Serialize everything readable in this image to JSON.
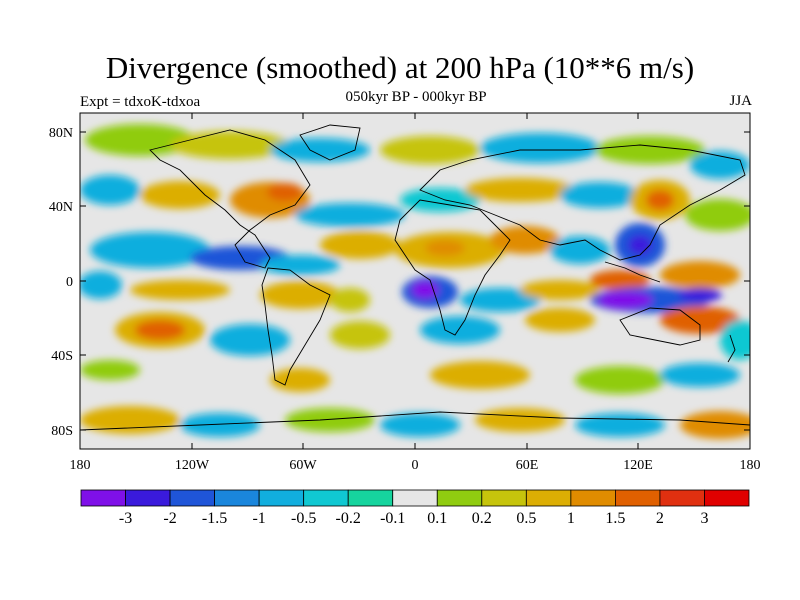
{
  "title": "Divergence (smoothed) at 200 hPa (10**6 m/s)",
  "subtitle": "050kyr BP - 000kyr BP",
  "experiment": "Expt = tdxoK-tdxoa",
  "season": "JJA",
  "map": {
    "lat_ticks": [
      "80N",
      "40N",
      "0",
      "40S",
      "80S"
    ],
    "lon_ticks": [
      "180",
      "120W",
      "60W",
      "0",
      "60E",
      "120E",
      "180"
    ]
  },
  "colorbar": {
    "labels": [
      "-3",
      "-2",
      "-1.5",
      "-1",
      "-0.5",
      "-0.2",
      "-0.1",
      "0.1",
      "0.2",
      "0.5",
      "1",
      "1.5",
      "2",
      "3"
    ],
    "colors": [
      "#7f10e8",
      "#3a1adc",
      "#1f55d8",
      "#1a86dc",
      "#11aede",
      "#10c8d2",
      "#16d49e",
      "#e6e6e6",
      "#90cc10",
      "#c6c40c",
      "#dcae04",
      "#e08c00",
      "#e06000",
      "#e03010",
      "#e00000"
    ]
  }
}
